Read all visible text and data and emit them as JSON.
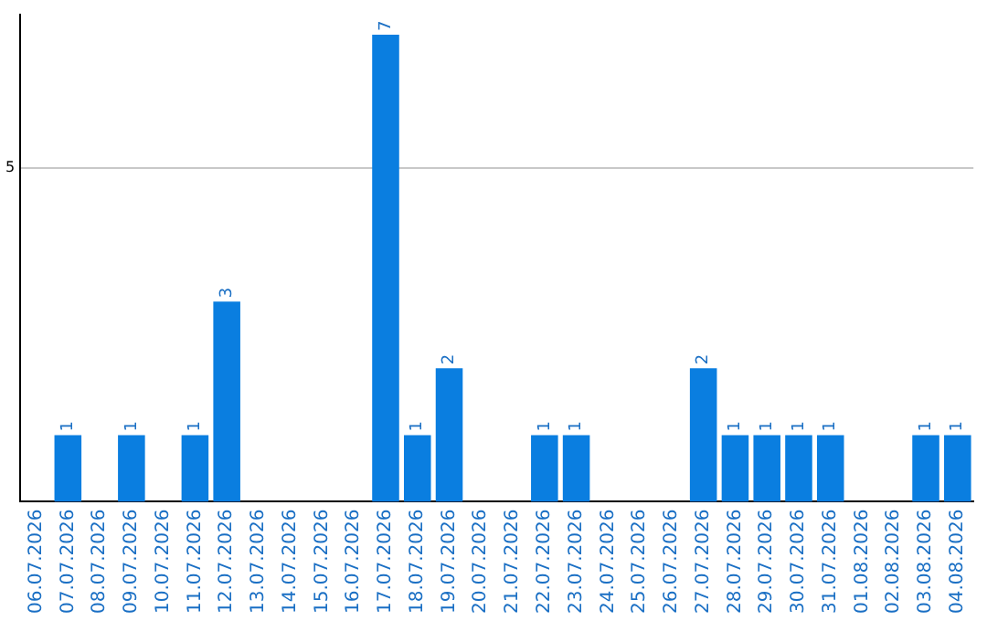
{
  "chart_data": {
    "type": "bar",
    "categories": [
      "06.07.2026",
      "07.07.2026",
      "08.07.2026",
      "09.07.2026",
      "10.07.2026",
      "11.07.2026",
      "12.07.2026",
      "13.07.2026",
      "14.07.2026",
      "15.07.2026",
      "16.07.2026",
      "17.07.2026",
      "18.07.2026",
      "19.07.2026",
      "20.07.2026",
      "21.07.2026",
      "22.07.2026",
      "23.07.2026",
      "24.07.2026",
      "25.07.2026",
      "26.07.2026",
      "27.07.2026",
      "28.07.2026",
      "29.07.2026",
      "30.07.2026",
      "31.07.2026",
      "01.08.2026",
      "02.08.2026",
      "03.08.2026",
      "04.08.2026"
    ],
    "values": [
      0,
      1,
      0,
      1,
      0,
      1,
      3,
      0,
      0,
      0,
      0,
      7,
      1,
      2,
      0,
      0,
      1,
      1,
      0,
      0,
      0,
      2,
      1,
      1,
      1,
      1,
      0,
      0,
      1,
      1
    ],
    "value_labels": [
      null,
      "1",
      null,
      "1",
      null,
      "1",
      "3",
      null,
      null,
      null,
      null,
      "7",
      "1",
      "2",
      null,
      null,
      "1",
      "1",
      null,
      null,
      null,
      "2",
      "1",
      "1",
      "1",
      "1",
      null,
      null,
      "1",
      "1"
    ],
    "color": "#0a7ee0",
    "ylim": [
      0,
      7.3
    ],
    "yticks": [
      5
    ],
    "grid": "y",
    "legend": false
  }
}
